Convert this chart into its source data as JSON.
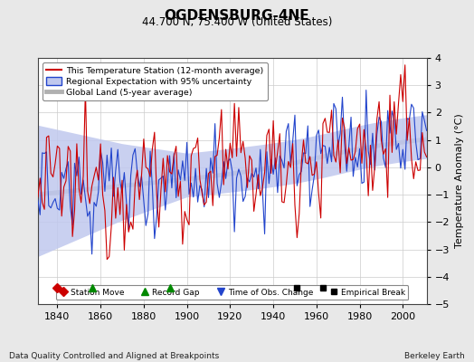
{
  "title": "OGDENSBURG-4NE",
  "subtitle": "44.700 N, 75.400 W (United States)",
  "ylabel": "Temperature Anomaly (°C)",
  "xlabel_note": "Data Quality Controlled and Aligned at Breakpoints",
  "credit": "Berkeley Earth",
  "year_start": 1831,
  "year_end": 2011,
  "ylim": [
    -5,
    4
  ],
  "yticks": [
    -5,
    -4,
    -3,
    -2,
    -1,
    0,
    1,
    2,
    3,
    4
  ],
  "xticks": [
    1840,
    1860,
    1880,
    1900,
    1920,
    1940,
    1960,
    1980,
    2000
  ],
  "background_color": "#e8e8e8",
  "plot_bg_color": "#ffffff",
  "station_color": "#cc0000",
  "regional_color": "#2244cc",
  "regional_fill_color": "#c0c8ee",
  "global_color": "#b0b0b0",
  "marker_station_move": {
    "year": 1840,
    "marker_y": -4.6
  },
  "marker_record_gaps": [
    {
      "year": 1856
    },
    {
      "year": 1892
    }
  ],
  "marker_time_obs": [],
  "marker_empirical_breaks": [
    {
      "year": 1951
    },
    {
      "year": 1963
    }
  ],
  "marker_y": -4.4,
  "legend_labels": [
    "This Temperature Station (12-month average)",
    "Regional Expectation with 95% uncertainty",
    "Global Land (5-year average)"
  ],
  "bottom_legend_labels": [
    "Station Move",
    "Record Gap",
    "Time of Obs. Change",
    "Empirical Break"
  ]
}
